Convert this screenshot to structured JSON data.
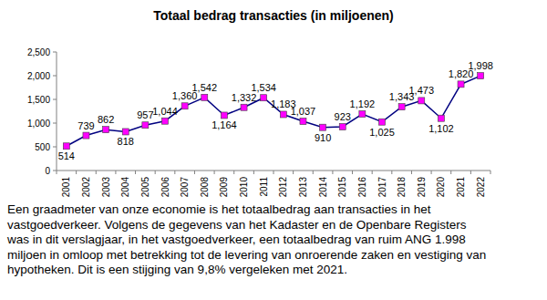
{
  "chart_data": {
    "type": "line",
    "title": "Totaal bedrag transacties (in miljoenen)",
    "categories": [
      "2001",
      "2002",
      "2003",
      "2004",
      "2005",
      "2006",
      "2007",
      "2008",
      "2009",
      "2010",
      "2011",
      "2012",
      "2013",
      "2014",
      "2015",
      "2016",
      "2017",
      "2018",
      "2019",
      "2020",
      "2021",
      "2022"
    ],
    "values": [
      514,
      739,
      862,
      818,
      957,
      1044,
      1360,
      1542,
      1164,
      1332,
      1534,
      1183,
      1037,
      910,
      923,
      1192,
      1025,
      1343,
      1473,
      1102,
      1820,
      1998
    ],
    "value_labels": [
      "514",
      "739",
      "862",
      "818",
      "957",
      "1,044",
      "1,360",
      "1,542",
      "1,164",
      "1,332",
      "1,534",
      "1,183",
      "1,037",
      "910",
      "923",
      "1,192",
      "1,025",
      "1,343",
      "1,473",
      "1,102",
      "1,820",
      "1,998"
    ],
    "color": "#000080",
    "marker": "square",
    "data_labels": true,
    "grid": false,
    "ylim": [
      0,
      2500
    ],
    "yticks": [
      0,
      500,
      {
        "value": 1000,
        "label": "1,000"
      },
      {
        "value": 1500,
        "label": "1,500"
      },
      {
        "value": 2000,
        "label": "2,000"
      },
      {
        "value": 2500,
        "label": "2,500"
      }
    ],
    "annotations": [
      "Een graadmeter van onze economie is het totaalbedrag aan transacties in het",
      "vastgoedverkeer. Volgens de gegevens van het Kadaster en de Openbare Registers",
      "was in dit verslagjaar, in het vastgoedverkeer, een totaalbedrag van ruim ANG 1.998",
      "miljoen in omloop met betrekking tot de levering van onroerende zaken en vestiging van",
      "hypotheken. Dit is een stijging van 9,8% vergeleken met 2021."
    ]
  }
}
